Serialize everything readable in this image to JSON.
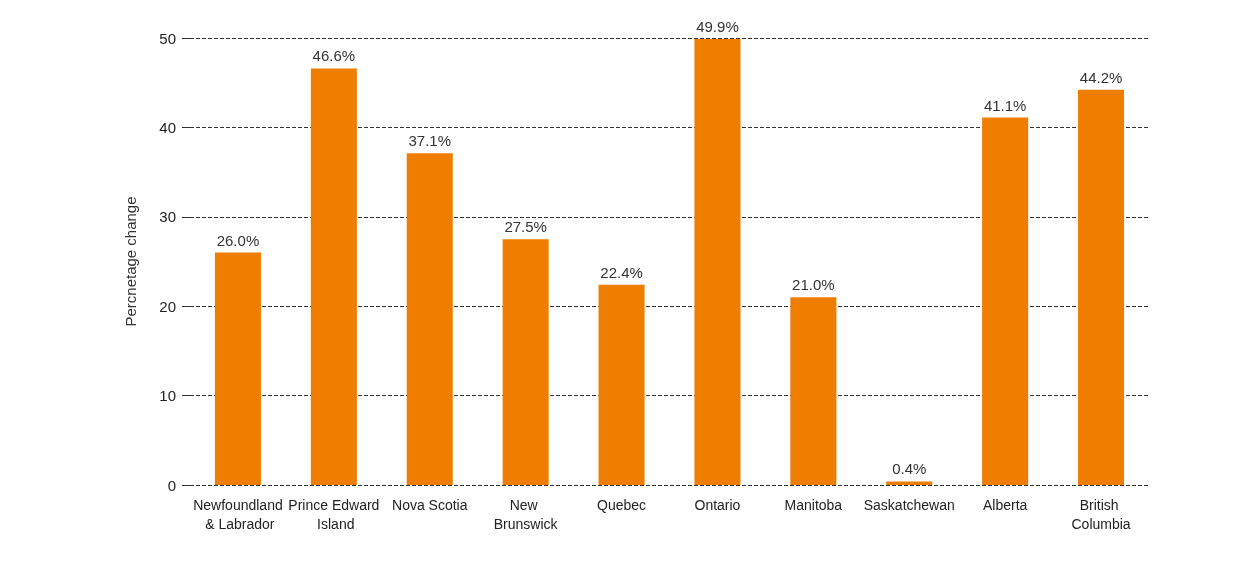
{
  "chart_data": {
    "type": "bar",
    "ylabel": "Percnetage change",
    "categories": [
      "Newfoundland & Labrador",
      "Prince Edward Island",
      "Nova Scotia",
      "New Brunswick",
      "Quebec",
      "Ontario",
      "Manitoba",
      "Saskatchewan",
      "Alberta",
      "British Columbia"
    ],
    "values": [
      26.0,
      46.6,
      37.1,
      27.5,
      22.4,
      49.9,
      21.0,
      0.4,
      41.1,
      44.2
    ],
    "value_labels": [
      "26.0%",
      "46.6%",
      "37.1%",
      "27.5%",
      "22.4%",
      "49.9%",
      "21.0%",
      "0.4%",
      "41.1%",
      "44.2%"
    ],
    "color": "#ef7d00",
    "ylim": [
      0,
      50
    ],
    "yticks": [
      0,
      10,
      20,
      30,
      40,
      50
    ],
    "grid": "y"
  }
}
